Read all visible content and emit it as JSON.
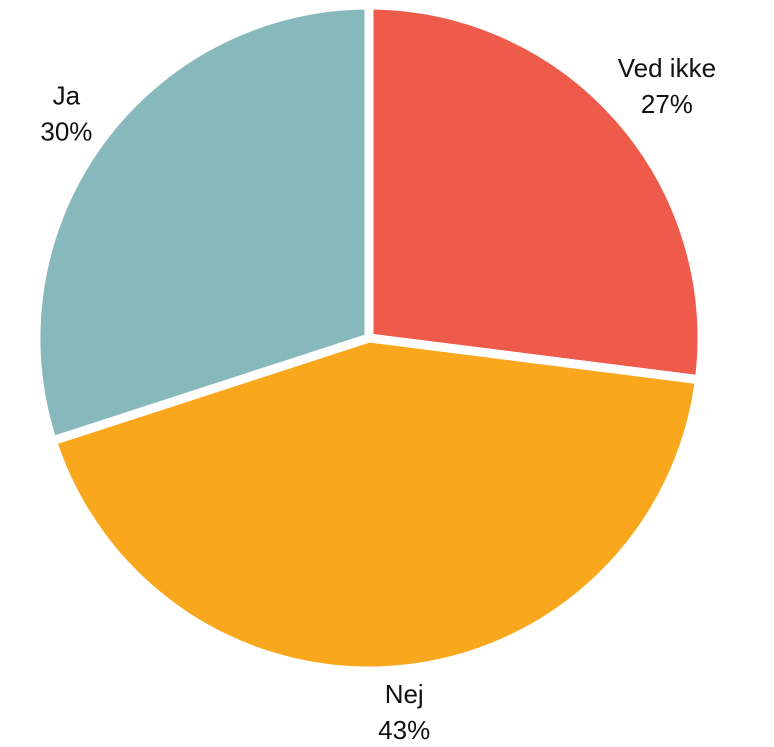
{
  "chart_data": {
    "type": "pie",
    "categories": [
      "Ved ikke",
      "Nej",
      "Ja"
    ],
    "values": [
      27,
      43,
      30
    ],
    "value_labels": [
      "27%",
      "43%",
      "30%"
    ],
    "colors": [
      "#ef5b4a",
      "#f9a71c",
      "#87b8bb"
    ]
  }
}
